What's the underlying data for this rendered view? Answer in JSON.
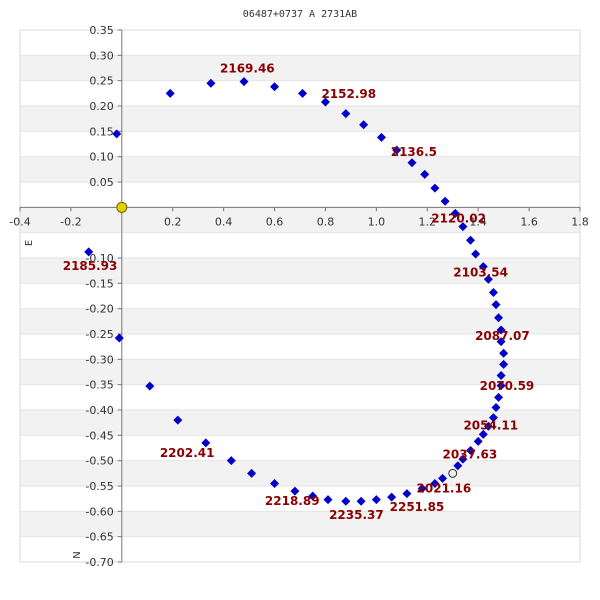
{
  "chart_data": {
    "type": "scatter",
    "title": "06487+0737 A  2731AB",
    "xlabel": "",
    "ylabel": "",
    "xlim": [
      -0.4,
      1.8
    ],
    "ylim": [
      -0.7,
      0.35
    ],
    "x_ticks": [
      "-0.4",
      "-0.2",
      "0.2",
      "0.4",
      "0.6",
      "0.8",
      "1.0",
      "1.2",
      "1.4",
      "1.6",
      "1.8"
    ],
    "y_ticks": [
      "0.35",
      "0.30",
      "0.25",
      "0.20",
      "0.15",
      "0.10",
      "0.05",
      "-0.10",
      "-0.15",
      "-0.20",
      "-0.25",
      "-0.30",
      "-0.35",
      "-0.40",
      "-0.45",
      "-0.50",
      "-0.55",
      "-0.60",
      "-0.65",
      "-0.70"
    ],
    "axis_labels": {
      "east": "E",
      "north": "N"
    },
    "grid": "horizontal bands",
    "colors": {
      "points": "#0000cc",
      "primary": "#e8d000",
      "annotation": "#8b0000"
    },
    "primary_star": {
      "x": 0.0,
      "y": 0.0
    },
    "observed_point": {
      "x": 1.3,
      "y": -0.525
    },
    "points": [
      {
        "x": -0.02,
        "y": 0.145
      },
      {
        "x": 0.19,
        "y": 0.225
      },
      {
        "x": 0.35,
        "y": 0.245
      },
      {
        "x": 0.48,
        "y": 0.248
      },
      {
        "x": 0.6,
        "y": 0.238
      },
      {
        "x": 0.71,
        "y": 0.225
      },
      {
        "x": 0.8,
        "y": 0.208
      },
      {
        "x": 0.88,
        "y": 0.185
      },
      {
        "x": 0.95,
        "y": 0.163
      },
      {
        "x": 1.02,
        "y": 0.138
      },
      {
        "x": 1.08,
        "y": 0.113
      },
      {
        "x": 1.14,
        "y": 0.088
      },
      {
        "x": 1.19,
        "y": 0.065
      },
      {
        "x": 1.23,
        "y": 0.038
      },
      {
        "x": 1.27,
        "y": 0.012
      },
      {
        "x": 1.31,
        "y": -0.012
      },
      {
        "x": 1.34,
        "y": -0.038
      },
      {
        "x": 1.37,
        "y": -0.065
      },
      {
        "x": 1.39,
        "y": -0.092
      },
      {
        "x": 1.42,
        "y": -0.117
      },
      {
        "x": 1.44,
        "y": -0.142
      },
      {
        "x": 1.46,
        "y": -0.168
      },
      {
        "x": 1.47,
        "y": -0.192
      },
      {
        "x": 1.48,
        "y": -0.218
      },
      {
        "x": 1.49,
        "y": -0.242
      },
      {
        "x": 1.49,
        "y": -0.265
      },
      {
        "x": 1.5,
        "y": -0.288
      },
      {
        "x": 1.5,
        "y": -0.31
      },
      {
        "x": 1.49,
        "y": -0.332
      },
      {
        "x": 1.49,
        "y": -0.352
      },
      {
        "x": 1.48,
        "y": -0.375
      },
      {
        "x": 1.47,
        "y": -0.395
      },
      {
        "x": 1.46,
        "y": -0.415
      },
      {
        "x": 1.44,
        "y": -0.432
      },
      {
        "x": 1.42,
        "y": -0.448
      },
      {
        "x": 1.4,
        "y": -0.462
      },
      {
        "x": 1.37,
        "y": -0.48
      },
      {
        "x": 1.34,
        "y": -0.497
      },
      {
        "x": 1.32,
        "y": -0.51
      },
      {
        "x": 1.26,
        "y": -0.535
      },
      {
        "x": 1.23,
        "y": -0.545
      },
      {
        "x": 1.18,
        "y": -0.555
      },
      {
        "x": 1.12,
        "y": -0.565
      },
      {
        "x": 1.06,
        "y": -0.572
      },
      {
        "x": 1.0,
        "y": -0.577
      },
      {
        "x": 0.94,
        "y": -0.58
      },
      {
        "x": 0.88,
        "y": -0.58
      },
      {
        "x": 0.81,
        "y": -0.577
      },
      {
        "x": 0.75,
        "y": -0.57
      },
      {
        "x": 0.68,
        "y": -0.56
      },
      {
        "x": 0.6,
        "y": -0.545
      },
      {
        "x": 0.51,
        "y": -0.525
      },
      {
        "x": 0.43,
        "y": -0.5
      },
      {
        "x": 0.33,
        "y": -0.465
      },
      {
        "x": 0.22,
        "y": -0.42
      },
      {
        "x": 0.11,
        "y": -0.353
      },
      {
        "x": -0.01,
        "y": -0.258
      },
      {
        "x": -0.13,
        "y": -0.088
      }
    ],
    "annotations": [
      {
        "text": "2169.46",
        "x": 0.48,
        "y": 0.248
      },
      {
        "text": "2152.98",
        "x": 0.8,
        "y": 0.208
      },
      {
        "text": "2136.5",
        "x": 1.08,
        "y": 0.113
      },
      {
        "text": "2120.02",
        "x": 1.31,
        "y": -0.012
      },
      {
        "text": "2103.54",
        "x": 1.42,
        "y": -0.117
      },
      {
        "text": "2087.07",
        "x": 1.49,
        "y": -0.242
      },
      {
        "text": "2070.59",
        "x": 1.5,
        "y": -0.333
      },
      {
        "text": "2054.11",
        "x": 1.46,
        "y": -0.415
      },
      {
        "text": "2037.63",
        "x": 1.37,
        "y": -0.48
      },
      {
        "text": "2021.16",
        "x": 1.26,
        "y": -0.535
      },
      {
        "text": "2251.85",
        "x": 1.06,
        "y": -0.572
      },
      {
        "text": "2235.37",
        "x": 0.94,
        "y": -0.58
      },
      {
        "text": "2218.89",
        "x": 0.68,
        "y": -0.56
      },
      {
        "text": "2202.41",
        "x": 0.33,
        "y": -0.465
      },
      {
        "text": "2185.93",
        "x": -0.13,
        "y": -0.088
      }
    ]
  }
}
